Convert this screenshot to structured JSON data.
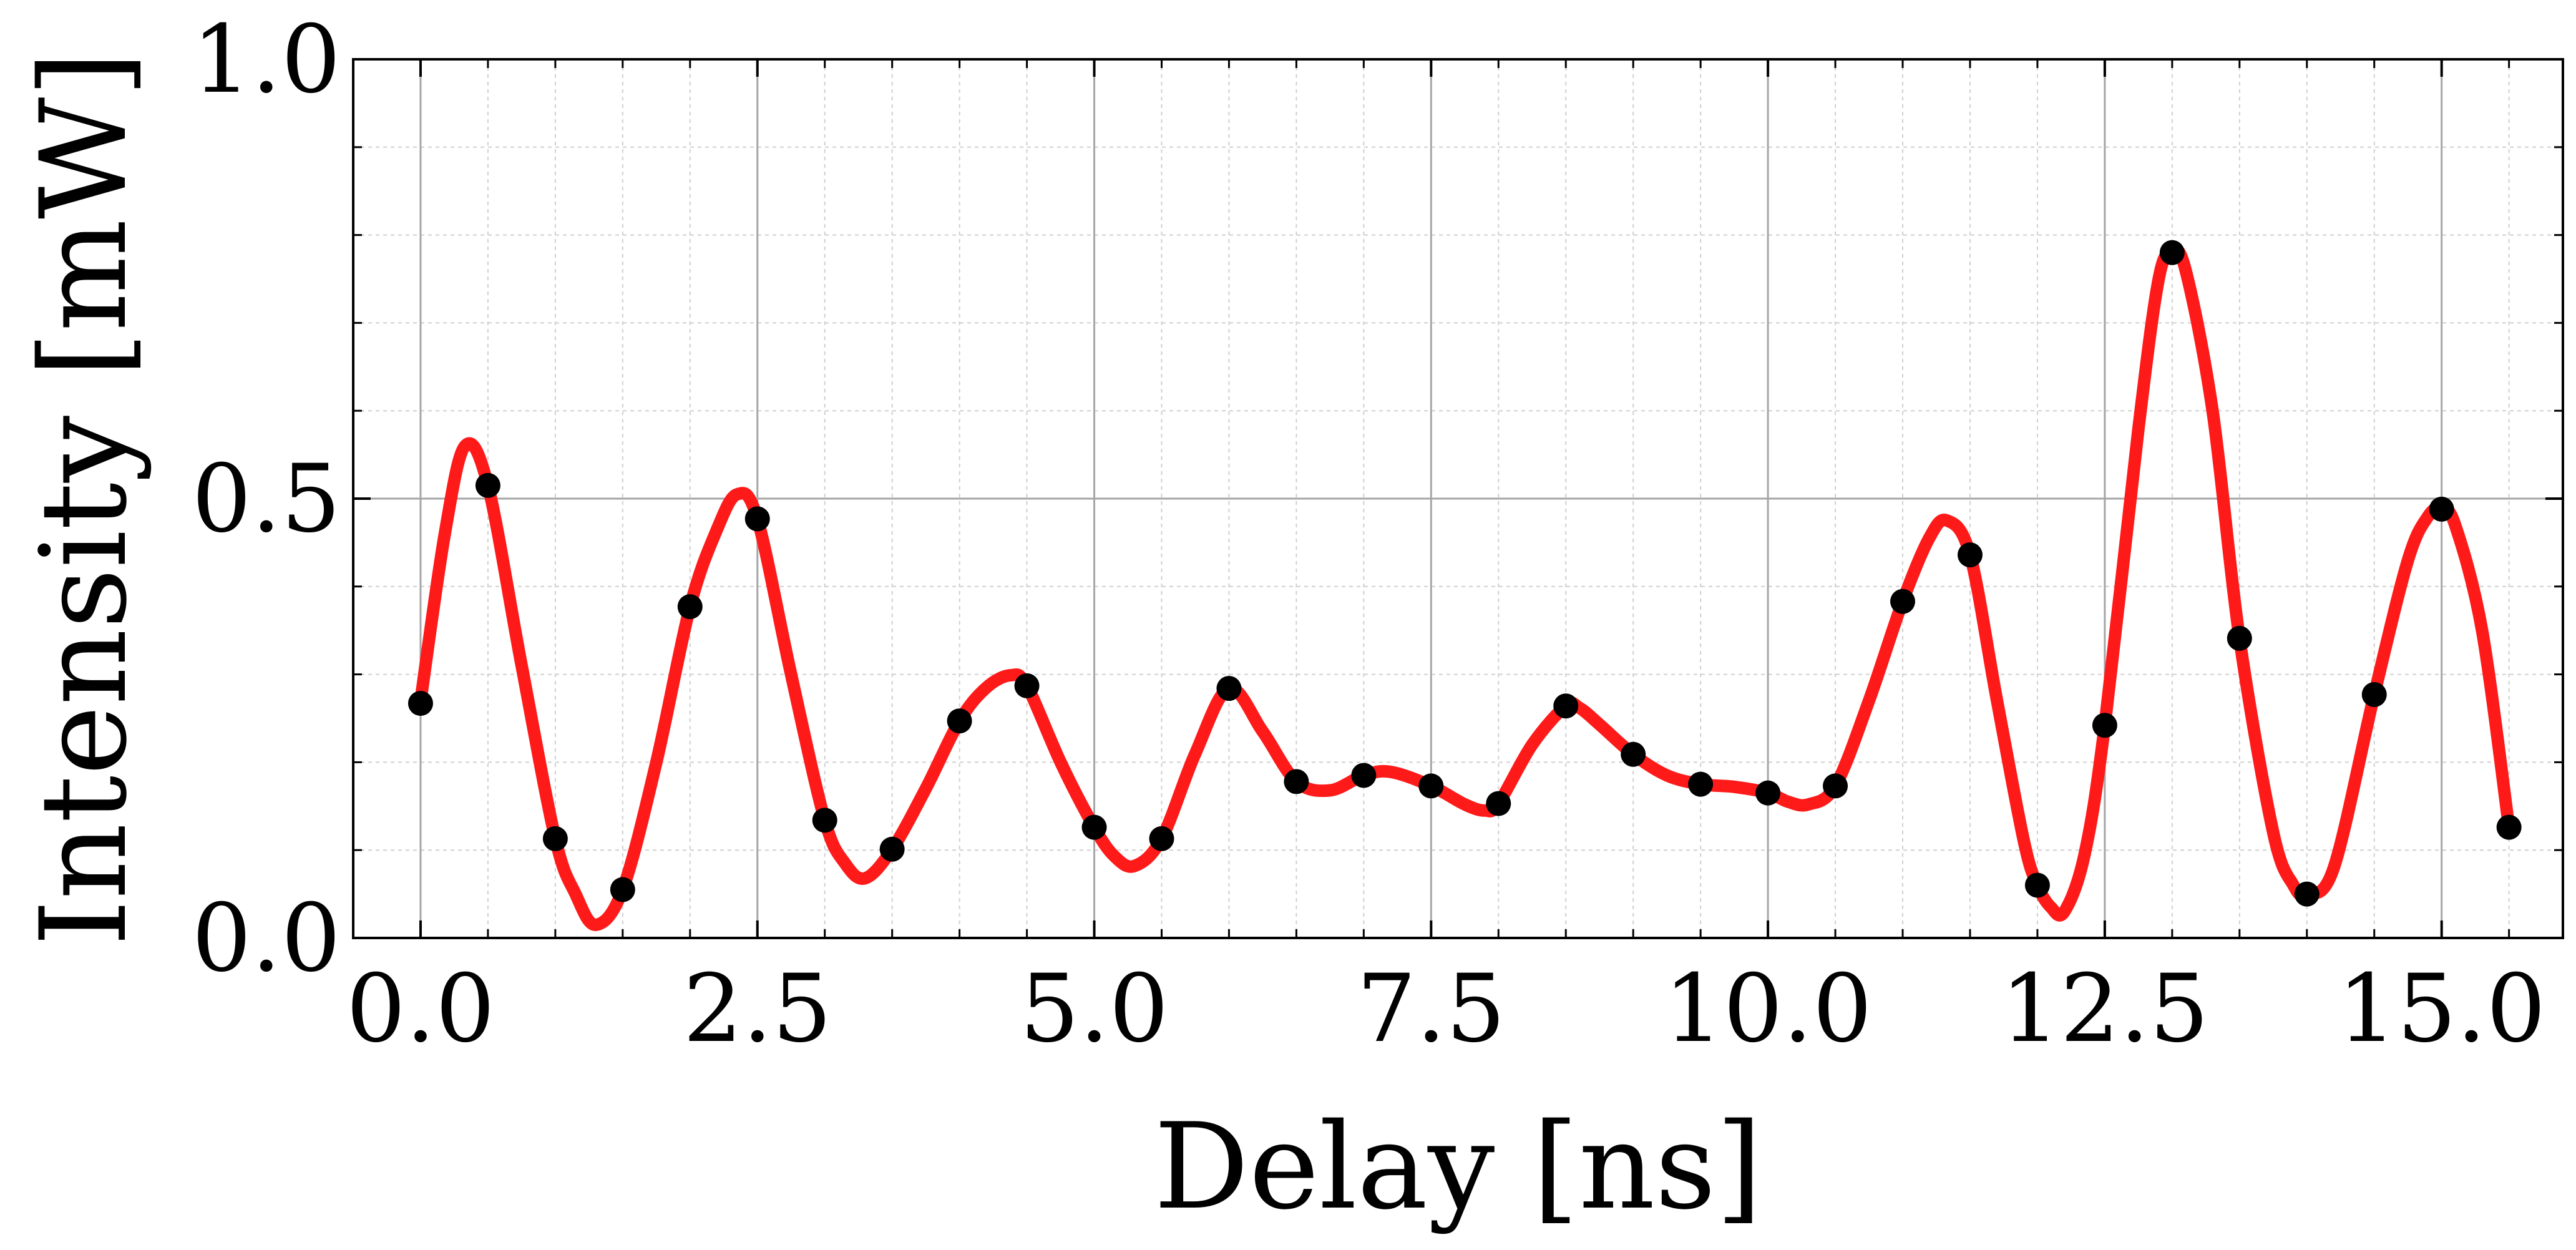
{
  "chart_data": {
    "type": "line",
    "title": "",
    "xlabel": "Delay [ns]",
    "ylabel": "Intensity [mW]",
    "xlim": [
      -0.5,
      15.9
    ],
    "ylim": [
      0.0,
      1.0
    ],
    "x_ticks": [
      0.0,
      2.5,
      5.0,
      7.5,
      10.0,
      12.5,
      15.0
    ],
    "x_tick_labels": [
      "0.0",
      "2.5",
      "5.0",
      "7.5",
      "10.0",
      "12.5",
      "15.0"
    ],
    "y_ticks": [
      0.0,
      0.5,
      1.0
    ],
    "y_tick_labels": [
      "0.0",
      "0.5",
      "1.0"
    ],
    "grid": true,
    "legend": "none",
    "colors": {
      "curve": "#ff1a1a",
      "points": "#000000"
    },
    "series": [
      {
        "kind": "points",
        "x": [
          0.0,
          0.5,
          1.0,
          1.5,
          2.0,
          2.5,
          3.0,
          3.5,
          4.0,
          4.5,
          5.0,
          5.5,
          6.0,
          6.5,
          7.0,
          7.5,
          8.0,
          8.5,
          9.0,
          9.5,
          10.0,
          10.5,
          11.0,
          11.5,
          12.0,
          12.5,
          13.0,
          13.5,
          14.0,
          14.5,
          15.0,
          15.5
        ],
        "y": [
          0.267,
          0.515,
          0.113,
          0.055,
          0.377,
          0.477,
          0.134,
          0.101,
          0.247,
          0.287,
          0.126,
          0.113,
          0.284,
          0.178,
          0.185,
          0.173,
          0.153,
          0.264,
          0.209,
          0.175,
          0.165,
          0.173,
          0.383,
          0.436,
          0.06,
          0.242,
          0.78,
          0.341,
          0.05,
          0.277,
          0.488,
          0.126
        ]
      },
      {
        "kind": "curve",
        "x": [
          0.0,
          0.18,
          0.33,
          0.5,
          0.75,
          1.0,
          1.15,
          1.3,
          1.5,
          1.75,
          2.0,
          2.2,
          2.35,
          2.5,
          2.75,
          3.0,
          3.15,
          3.3,
          3.5,
          3.75,
          4.0,
          4.2,
          4.38,
          4.5,
          4.75,
          5.0,
          5.15,
          5.3,
          5.5,
          5.75,
          6.0,
          6.25,
          6.5,
          6.75,
          7.0,
          7.2,
          7.5,
          7.75,
          7.9,
          8.0,
          8.25,
          8.5,
          8.6,
          8.75,
          9.0,
          9.25,
          9.5,
          9.75,
          10.0,
          10.15,
          10.3,
          10.5,
          10.75,
          11.0,
          11.2,
          11.33,
          11.5,
          11.7,
          11.9,
          12.0,
          12.1,
          12.2,
          12.35,
          12.5,
          12.75,
          12.9,
          13.0,
          13.1,
          13.3,
          13.5,
          13.75,
          13.9,
          14.0,
          14.2,
          14.5,
          14.75,
          14.9,
          15.0,
          15.1,
          15.3,
          15.5
        ],
        "y": [
          0.27,
          0.46,
          0.56,
          0.515,
          0.31,
          0.113,
          0.05,
          0.015,
          0.055,
          0.2,
          0.377,
          0.465,
          0.505,
          0.477,
          0.3,
          0.134,
          0.085,
          0.068,
          0.101,
          0.17,
          0.247,
          0.285,
          0.299,
          0.287,
          0.2,
          0.126,
          0.093,
          0.082,
          0.113,
          0.21,
          0.284,
          0.235,
          0.178,
          0.168,
          0.185,
          0.189,
          0.173,
          0.152,
          0.145,
          0.153,
          0.22,
          0.264,
          0.262,
          0.243,
          0.209,
          0.185,
          0.175,
          0.172,
          0.165,
          0.155,
          0.152,
          0.173,
          0.27,
          0.383,
          0.456,
          0.475,
          0.436,
          0.27,
          0.11,
          0.06,
          0.035,
          0.03,
          0.095,
          0.242,
          0.58,
          0.75,
          0.78,
          0.76,
          0.6,
          0.341,
          0.12,
          0.06,
          0.05,
          0.08,
          0.277,
          0.43,
          0.48,
          0.488,
          0.47,
          0.35,
          0.126
        ]
      }
    ]
  }
}
